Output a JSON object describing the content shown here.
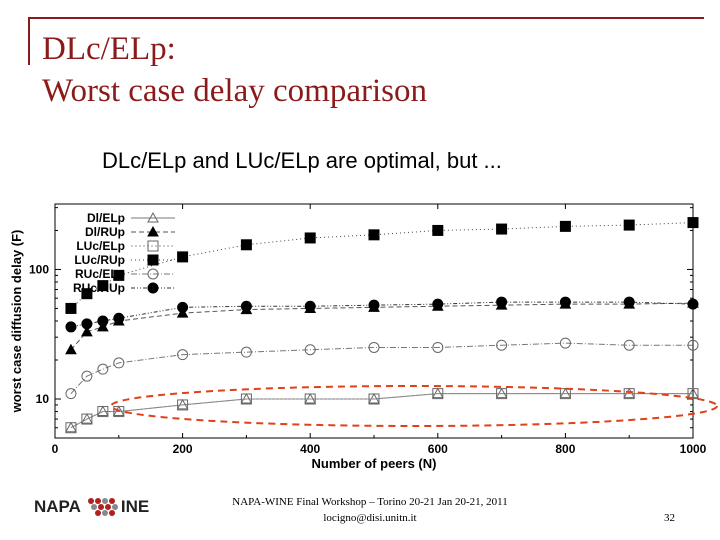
{
  "slide": {
    "title_line1": "DLc/ELp:",
    "title_line2": "Worst case delay comparison",
    "subtitle": "DLc/ELp and LUc/ELp are optimal, but ...",
    "footer_line1": "NAPA-WINE Final Workshop – Torino 20-21 Jan 20-21, 2011",
    "footer_line2": "locigno@disi.unitn.it",
    "page_number": "32",
    "logo_left": "NAPA",
    "logo_right": "INE",
    "colors": {
      "title": "#8b1a1a",
      "highlight": "#e0401a"
    }
  },
  "chart_data": {
    "type": "line",
    "title": "",
    "xlabel": "Number of peers (N)",
    "ylabel": "worst case diffusion delay (F)",
    "yscale": "log",
    "xlim": [
      0,
      1000
    ],
    "ylim": [
      5,
      320
    ],
    "xticks": [
      0,
      200,
      400,
      600,
      800,
      1000
    ],
    "xtick_labels": [
      "0",
      "200",
      "400",
      "600",
      "800",
      "1000"
    ],
    "yticks": [
      10,
      100
    ],
    "ytick_labels": [
      "10",
      "100"
    ],
    "legend_position": "top-left",
    "annotation": "dashed red ellipse highlighting the lowest (optimal) curves",
    "series": [
      {
        "name": "Dl/ELp",
        "marker": "open-triangle",
        "x": [
          25,
          50,
          75,
          100,
          200,
          300,
          400,
          500,
          600,
          700,
          800,
          900,
          1000
        ],
        "y": [
          6,
          7,
          8,
          8,
          9,
          10,
          10,
          10,
          11,
          11,
          11,
          11,
          11
        ]
      },
      {
        "name": "Dl/RUp",
        "marker": "filled-triangle",
        "x": [
          25,
          50,
          75,
          100,
          200,
          300,
          400,
          500,
          600,
          700,
          800,
          900,
          1000
        ],
        "y": [
          24,
          33,
          36,
          40,
          46,
          49,
          50,
          51,
          52,
          53,
          54,
          54,
          55
        ]
      },
      {
        "name": "LUc/ELp",
        "marker": "open-square",
        "x": [
          25,
          50,
          75,
          100,
          200,
          300,
          400,
          500,
          600,
          700,
          800,
          900,
          1000
        ],
        "y": [
          6,
          7,
          8,
          8,
          9,
          10,
          10,
          10,
          11,
          11,
          11,
          11,
          11
        ]
      },
      {
        "name": "LUc/RUp",
        "marker": "filled-square",
        "x": [
          25,
          50,
          75,
          100,
          200,
          300,
          400,
          500,
          600,
          700,
          800,
          900,
          1000
        ],
        "y": [
          50,
          65,
          75,
          90,
          125,
          155,
          175,
          185,
          200,
          205,
          215,
          220,
          230
        ]
      },
      {
        "name": "RUc/ELp",
        "marker": "open-circle",
        "x": [
          25,
          50,
          75,
          100,
          200,
          300,
          400,
          500,
          600,
          700,
          800,
          900,
          1000
        ],
        "y": [
          11,
          15,
          17,
          19,
          22,
          23,
          24,
          25,
          25,
          26,
          27,
          26,
          26
        ]
      },
      {
        "name": "RUc/RUp",
        "marker": "filled-circle",
        "x": [
          25,
          50,
          75,
          100,
          200,
          300,
          400,
          500,
          600,
          700,
          800,
          900,
          1000
        ],
        "y": [
          36,
          38,
          40,
          42,
          51,
          52,
          52,
          53,
          54,
          56,
          56,
          56,
          54
        ]
      }
    ]
  }
}
